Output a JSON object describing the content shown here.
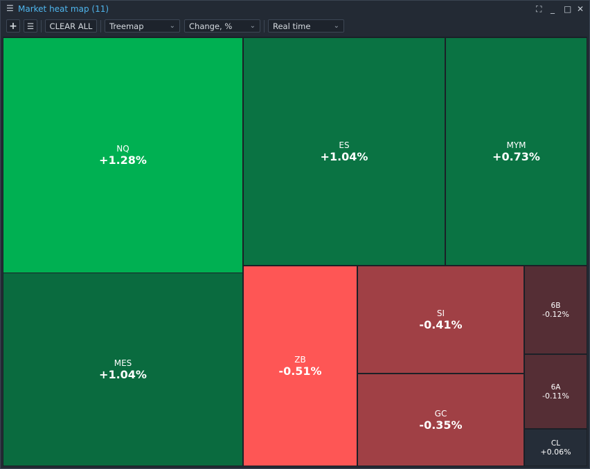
{
  "window": {
    "title": "Market heat map (11)",
    "controls": [
      "fullscreen",
      "minimize",
      "maximize",
      "close"
    ]
  },
  "toolbar": {
    "add": "+",
    "clear_all": "CLEAR ALL",
    "view": "Treemap",
    "metric": "Change, %",
    "mode": "Real time"
  },
  "tiles": [
    {
      "symbol": "NQ",
      "change": "+1.28%",
      "color": "#00b052"
    },
    {
      "symbol": "MES",
      "change": "+1.04%",
      "color": "#0a6b3f"
    },
    {
      "symbol": "ES",
      "change": "+1.04%",
      "color": "#0a7343"
    },
    {
      "symbol": "MYM",
      "change": "+0.73%",
      "color": "#0a7343"
    },
    {
      "symbol": "ZB",
      "change": "-0.51%",
      "color": "#fe5655"
    },
    {
      "symbol": "SI",
      "change": "-0.41%",
      "color": "#a04045"
    },
    {
      "symbol": "GC",
      "change": "-0.35%",
      "color": "#a04045"
    },
    {
      "symbol": "6B",
      "change": "-0.12%",
      "color": "#552e35"
    },
    {
      "symbol": "6A",
      "change": "-0.11%",
      "color": "#552e35"
    },
    {
      "symbol": "CL",
      "change": "+0.06%",
      "color": "#252d38"
    }
  ]
}
